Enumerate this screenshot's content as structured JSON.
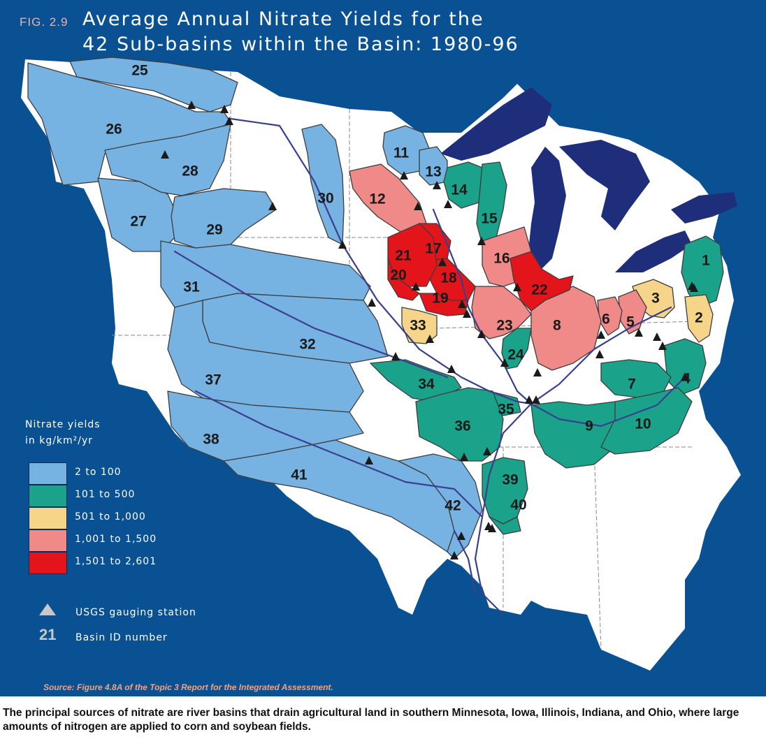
{
  "header": {
    "fig_label": "FIG. 2.9",
    "title_line1": "Average Annual Nitrate Yields for the",
    "title_line2": "42 Sub-basins within the Basin: 1980-96"
  },
  "legend": {
    "title_line1": "Nitrate yields",
    "title_line2": "in kg/km²/yr",
    "classes": [
      {
        "label": "2 to 100",
        "color": "#77b3e2"
      },
      {
        "label": "101 to 500",
        "color": "#1aa38a"
      },
      {
        "label": "501 to 1,000",
        "color": "#f6d58a"
      },
      {
        "label": "1,001 to 1,500",
        "color": "#ef8a88"
      },
      {
        "label": "1,501 to 2,601",
        "color": "#e3151a"
      }
    ],
    "station_label": "USGS gauging station",
    "basin_id_example": "21",
    "basin_id_label": "Basin ID number"
  },
  "colors": {
    "ocean": "#0a5193",
    "land": "#ffffff",
    "lakes": "#1f2e7a",
    "rivers": "#3a3f8f"
  },
  "basins": [
    {
      "id": "1",
      "class": 1
    },
    {
      "id": "2",
      "class": 2
    },
    {
      "id": "3",
      "class": 2
    },
    {
      "id": "4",
      "class": 1
    },
    {
      "id": "5",
      "class": 3
    },
    {
      "id": "6",
      "class": 3
    },
    {
      "id": "7",
      "class": 1
    },
    {
      "id": "8",
      "class": 3
    },
    {
      "id": "9",
      "class": 1
    },
    {
      "id": "10",
      "class": 1
    },
    {
      "id": "11",
      "class": 0
    },
    {
      "id": "12",
      "class": 3
    },
    {
      "id": "13",
      "class": 0
    },
    {
      "id": "14",
      "class": 1
    },
    {
      "id": "15",
      "class": 1
    },
    {
      "id": "16",
      "class": 3
    },
    {
      "id": "17",
      "class": 4
    },
    {
      "id": "18",
      "class": 4
    },
    {
      "id": "19",
      "class": 4
    },
    {
      "id": "20",
      "class": 4
    },
    {
      "id": "21",
      "class": 4
    },
    {
      "id": "22",
      "class": 4
    },
    {
      "id": "23",
      "class": 3
    },
    {
      "id": "24",
      "class": 1
    },
    {
      "id": "25",
      "class": 0
    },
    {
      "id": "26",
      "class": 0
    },
    {
      "id": "27",
      "class": 0
    },
    {
      "id": "28",
      "class": 0
    },
    {
      "id": "29",
      "class": 0
    },
    {
      "id": "30",
      "class": 0
    },
    {
      "id": "31",
      "class": 0
    },
    {
      "id": "32",
      "class": 0
    },
    {
      "id": "33",
      "class": 2
    },
    {
      "id": "34",
      "class": 1
    },
    {
      "id": "35",
      "class": 1
    },
    {
      "id": "36",
      "class": 1
    },
    {
      "id": "37",
      "class": 0
    },
    {
      "id": "38",
      "class": 0
    },
    {
      "id": "39",
      "class": 1
    },
    {
      "id": "40",
      "class": 1
    },
    {
      "id": "41",
      "class": 0
    },
    {
      "id": "42",
      "class": 0
    }
  ],
  "source": "Source: Figure 4.8A of the Topic 3 Report for the Integrated Assessment.",
  "caption": "The principal sources of nitrate are river basins that drain agricultural land in southern Minnesota, Iowa, Illinois, Indiana, and Ohio, where large amounts of nitrogen are applied to corn and soybean fields."
}
